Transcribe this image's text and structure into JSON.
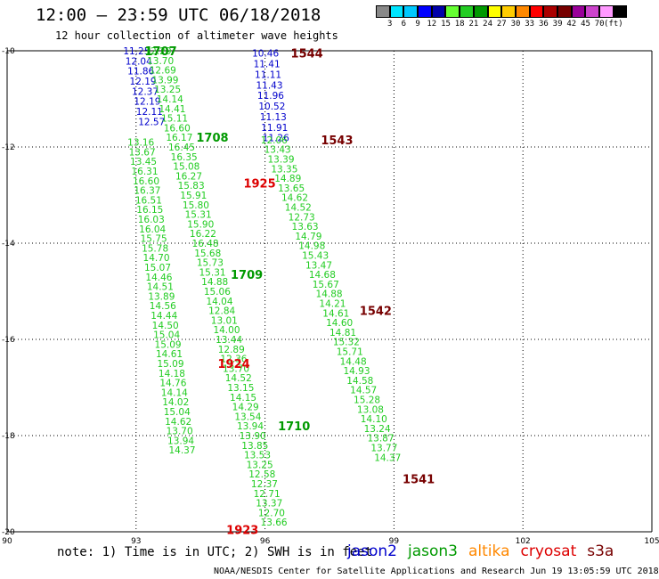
{
  "title": "12:00 – 23:59 UTC 06/18/2018",
  "subtitle": "12 hour collection of altimeter wave heights",
  "legend": {
    "colors": [
      "#888888",
      "#00e5ff",
      "#00c8ff",
      "#0000ff",
      "#0000aa",
      "#66ff33",
      "#22cc22",
      "#009900",
      "#ffff00",
      "#ffcc00",
      "#ff8800",
      "#ff0000",
      "#aa0000",
      "#770000",
      "#990099",
      "#cc44cc",
      "#ff99ff",
      "#000000"
    ],
    "labels": [
      "3",
      "6",
      "9",
      "12",
      "15",
      "18",
      "21",
      "24",
      "27",
      "30",
      "33",
      "36",
      "39",
      "42",
      "45",
      "70",
      "(ft)"
    ]
  },
  "axes": {
    "lat_labels": [
      "-10",
      "-12",
      "-14",
      "-16",
      "-18",
      "-20"
    ],
    "lon_labels": [
      "90",
      "93",
      "96",
      "99",
      "102",
      "105"
    ]
  },
  "note": "note: 1) Time is in UTC; 2) SWH is in feet",
  "satellites": [
    {
      "name": "jason2",
      "color": "#0000cc"
    },
    {
      "name": "jason3",
      "color": "#009900"
    },
    {
      "name": "altika",
      "color": "#ff8800"
    },
    {
      "name": "cryosat",
      "color": "#dd0000"
    },
    {
      "name": "s3a",
      "color": "#770000"
    }
  ],
  "credit": "NOAA/NESDIS Center for Satellite Applications and Research   Jun 19 13:05:59 UTC 2018",
  "time_labels": [
    {
      "text": "1707",
      "lat": -10.0,
      "lon": 93.2,
      "color": "#009900"
    },
    {
      "text": "1544",
      "lat": -10.05,
      "lon": 96.6,
      "color": "#770000"
    },
    {
      "text": "1708",
      "lat": -11.8,
      "lon": 94.4,
      "color": "#009900"
    },
    {
      "text": "1543",
      "lat": -11.85,
      "lon": 97.3,
      "color": "#770000"
    },
    {
      "text": "1925",
      "lat": -12.75,
      "lon": 95.5,
      "color": "#dd0000"
    },
    {
      "text": "1709",
      "lat": -14.65,
      "lon": 95.2,
      "color": "#009900"
    },
    {
      "text": "1542",
      "lat": -15.4,
      "lon": 98.2,
      "color": "#770000"
    },
    {
      "text": "1924",
      "lat": -16.5,
      "lon": 94.9,
      "color": "#dd0000"
    },
    {
      "text": "1710",
      "lat": -17.8,
      "lon": 96.3,
      "color": "#009900"
    },
    {
      "text": "1541",
      "lat": -18.9,
      "lon": 99.2,
      "color": "#770000"
    },
    {
      "text": "1923",
      "lat": -19.95,
      "lon": 95.1,
      "color": "#dd0000"
    }
  ],
  "tracks": [
    {
      "color": "#0000cc",
      "lat0": -10.0,
      "lon0": 92.7,
      "dlat": 0.21,
      "dlon": 0.05,
      "values": [
        "11.25",
        "12.04",
        "11.86",
        "12.19",
        "12.37",
        "12.19",
        "12.11",
        "12.57"
      ]
    },
    {
      "color": "#22cc22",
      "lat0": -10.0,
      "lon0": 93.2,
      "dlat": 0.2,
      "dlon": 0.055,
      "values": [
        "12.29",
        "13.70",
        "12.69",
        "13.99",
        "13.25",
        "14.14",
        "14.41",
        "15.11",
        "16.60",
        "16.17",
        "16.45",
        "16.35",
        "15.08",
        "16.27",
        "15.83",
        "15.91",
        "15.80",
        "15.31",
        "15.90",
        "16.22",
        "16.48",
        "15.68",
        "15.73",
        "15.31",
        "14.88",
        "15.06",
        "14.04",
        "12.84",
        "13.01",
        "14.00",
        "13.44",
        "12.89",
        "12.36",
        "13.70",
        "14.52",
        "13.15",
        "14.15",
        "14.29",
        "13.54",
        "13.94",
        "13.90",
        "13.85",
        "13.53",
        "13.25",
        "12.58",
        "12.37",
        "12.71",
        "13.37",
        "12.70",
        "13.66",
        "13.49"
      ]
    },
    {
      "color": "#22cc22",
      "lat0": -11.9,
      "lon0": 92.8,
      "dlat": 0.2,
      "dlon": 0.03,
      "values": [
        "13.16",
        "13.67",
        "13.45",
        "16.31",
        "16.60",
        "16.37",
        "16.51",
        "16.15",
        "16.03",
        "16.04",
        "15.75",
        "15.78",
        "14.70",
        "15.07",
        "14.46",
        "14.51",
        "13.89",
        "14.56",
        "14.44",
        "14.50",
        "15.04",
        "15.09",
        "14.61",
        "15.09",
        "14.18",
        "14.76",
        "14.14",
        "14.02",
        "15.04",
        "14.62",
        "13.70",
        "13.94",
        "14.37"
      ]
    },
    {
      "color": "#0000cc",
      "lat0": -10.05,
      "lon0": 95.7,
      "dlat": 0.22,
      "dlon": 0.03,
      "values": [
        "10.46",
        "11.41",
        "11.11",
        "11.43",
        "11.96",
        "10.52",
        "11.13",
        "11.91",
        "11.26"
      ]
    },
    {
      "color": "#22cc22",
      "lat0": -11.85,
      "lon0": 95.9,
      "dlat": 0.2,
      "dlon": 0.08,
      "values": [
        "12.06",
        "13.43",
        "13.39",
        "13.35",
        "14.89",
        "13.65",
        "14.62",
        "14.52",
        "12.73",
        "13.63",
        "14.79",
        "14.98",
        "15.43",
        "13.47",
        "14.68",
        "15.67",
        "14.88",
        "14.21",
        "14.61",
        "14.60",
        "14.81",
        "15.32",
        "15.71",
        "14.48",
        "14.93",
        "14.58",
        "14.57",
        "15.28",
        "13.08",
        "14.10",
        "13.24",
        "13.87",
        "13.77",
        "14.37"
      ]
    }
  ]
}
